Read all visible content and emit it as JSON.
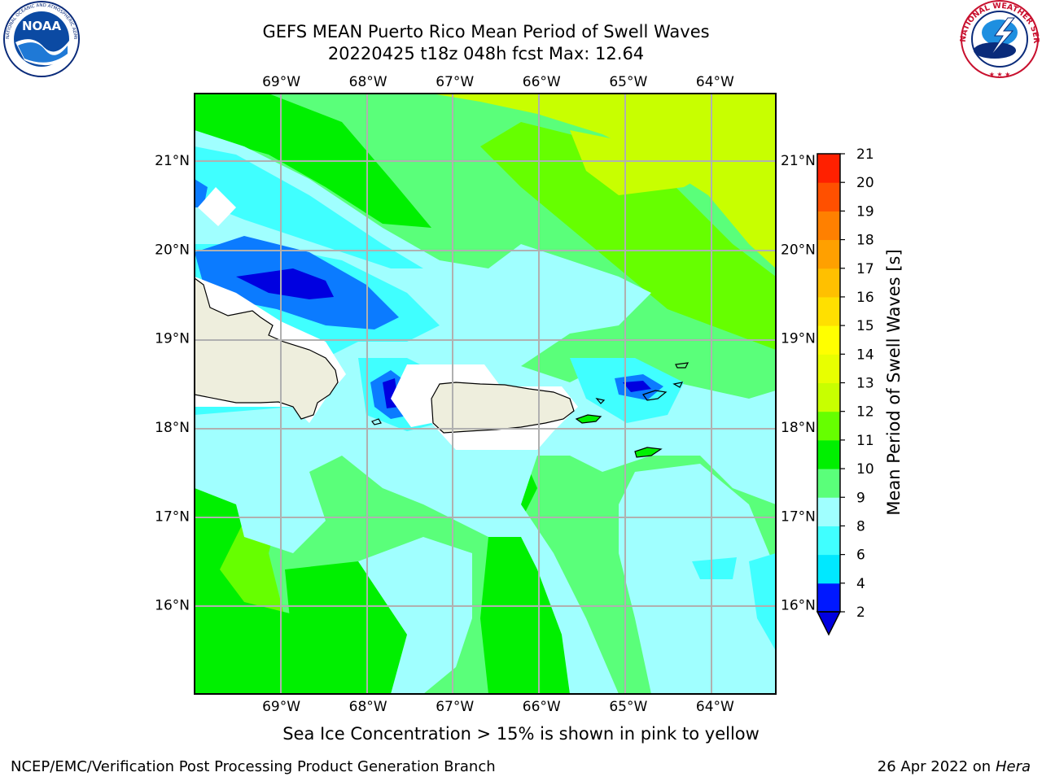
{
  "title_line1": "GEFS MEAN Puerto Rico Mean Period of Swell Waves",
  "title_line2": "20220425 t18z 048h fcst   Max: 12.64",
  "caption": "Sea Ice Concentration > 15% is shown in pink to yellow",
  "footer_left": "NCEP/EMC/Verification Post Processing Product Generation Branch",
  "footer_right_date": "26 Apr 2022 on ",
  "footer_right_host": "Hera",
  "logos": {
    "noaa": {
      "name": "noaa-logo-icon",
      "text": "NOAA",
      "ring_text": "NATIONAL OCEANIC AND ATMOSPHERIC ADMINISTRATION · U.S. DEPARTMENT OF COMMERCE"
    },
    "nws": {
      "name": "nws-logo-icon",
      "ring_text": "NATIONAL WEATHER SERVICE"
    }
  },
  "map": {
    "lon_ticks": [
      "69°W",
      "68°W",
      "67°W",
      "66°W",
      "65°W",
      "64°W"
    ],
    "lat_ticks": [
      "21°N",
      "20°N",
      "19°N",
      "18°N",
      "17°N",
      "16°N"
    ],
    "lon_values": [
      -69,
      -68,
      -67,
      -66,
      -65,
      -64
    ],
    "lat_values": [
      21,
      20,
      19,
      18,
      17,
      16
    ],
    "extent": {
      "lon_min": -70,
      "lon_max": -63.3,
      "lat_min": 15,
      "lat_max": 21.75
    },
    "land_color": "#eeeedd",
    "grid": true
  },
  "colorbar": {
    "label": "Mean Period of Swell Waves [s]",
    "ticks": [
      "21",
      "20",
      "19",
      "18",
      "17",
      "16",
      "15",
      "14",
      "13",
      "12",
      "11",
      "10",
      "9",
      "8",
      "6",
      "4",
      "2"
    ],
    "levels": [
      2,
      4,
      6,
      8,
      9,
      10,
      11,
      12,
      13,
      14,
      15,
      16,
      17,
      18,
      19,
      20,
      21
    ],
    "colors": [
      "#0018ff",
      "#00e8ff",
      "#40ffff",
      "#a0ffff",
      "#5aff7a",
      "#00f000",
      "#66ff00",
      "#c8ff00",
      "#e8ff00",
      "#ffff00",
      "#ffe000",
      "#ffc000",
      "#ffa000",
      "#ff8000",
      "#ff5000",
      "#ff2000"
    ],
    "under_color": "#0000e0",
    "extend": "min"
  }
}
